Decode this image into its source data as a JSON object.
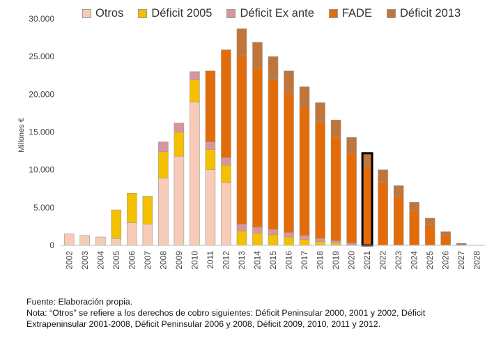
{
  "chart_data": {
    "type": "bar",
    "stacked": true,
    "ylabel": "Millones €",
    "ylim": [
      0,
      30000
    ],
    "yticks": [
      "0",
      "5.000",
      "10.000",
      "15.000",
      "20.000",
      "25.000",
      "30.000"
    ],
    "grid": false,
    "legend_position": "top",
    "highlighted_category": "2021",
    "categories": [
      "2002",
      "2003",
      "2004",
      "2005",
      "2006",
      "2007",
      "2008",
      "2009",
      "2010",
      "2011",
      "2012",
      "2013",
      "2014",
      "2015",
      "2016",
      "2017",
      "2018",
      "2019",
      "2020",
      "2021",
      "2022",
      "2023",
      "2024",
      "2025",
      "2026",
      "2027",
      "2028"
    ],
    "series": [
      {
        "name": "Otros",
        "color": "#f8cbb8",
        "values": [
          1500,
          1300,
          1100,
          900,
          3000,
          2800,
          8900,
          11800,
          19000,
          10000,
          8300,
          0,
          0,
          0,
          0,
          0,
          0,
          0,
          0,
          0,
          0,
          0,
          0,
          0,
          0,
          0,
          0
        ]
      },
      {
        "name": "Déficit 2005",
        "color": "#f5c000",
        "values": [
          0,
          0,
          0,
          3800,
          3900,
          3700,
          3500,
          3200,
          2900,
          2700,
          2300,
          1900,
          1600,
          1400,
          1100,
          800,
          500,
          300,
          100,
          0,
          0,
          0,
          0,
          0,
          0,
          0,
          0
        ]
      },
      {
        "name": "Déficit Ex ante",
        "color": "#d9959c",
        "values": [
          0,
          0,
          0,
          0,
          0,
          0,
          1300,
          1200,
          1100,
          1000,
          1000,
          900,
          800,
          700,
          600,
          500,
          400,
          300,
          200,
          0,
          0,
          0,
          0,
          0,
          0,
          0,
          0
        ]
      },
      {
        "name": "FADE",
        "color": "#e36c09",
        "values": [
          0,
          0,
          0,
          0,
          0,
          0,
          0,
          0,
          0,
          9400,
          14300,
          22400,
          21200,
          19800,
          18500,
          17000,
          15500,
          13800,
          11900,
          10400,
          8400,
          6500,
          4600,
          2700,
          1300,
          0,
          0
        ]
      },
      {
        "name": "Déficit 2013",
        "color": "#c0753a",
        "values": [
          0,
          0,
          0,
          0,
          0,
          0,
          0,
          0,
          0,
          0,
          0,
          3500,
          3300,
          3100,
          2900,
          2700,
          2500,
          2200,
          2100,
          1800,
          1600,
          1400,
          1100,
          900,
          500,
          250,
          0
        ]
      }
    ]
  },
  "footer": {
    "source": "Fuente:  Elaboración propia.",
    "note_line1": "Nota:      “Otros” se refiere a los derechos de cobro siguientes: Déficit Peninsular 2000, 2001 y 2002, Déficit",
    "note_line2": "Extrapeninsular 2001-2008, Déficit Peninsular 2006 y 2008, Déficit 2009, 2010, 2011 y 2012."
  }
}
